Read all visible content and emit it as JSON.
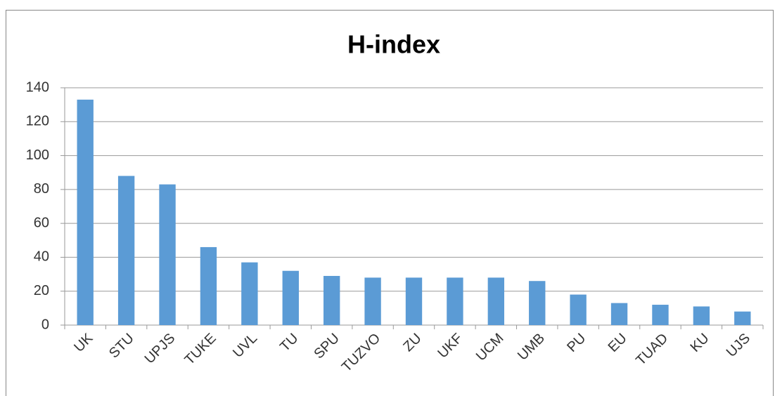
{
  "chart_data": {
    "type": "bar",
    "title": "H-index",
    "categories": [
      "UK",
      "STU",
      "UPJS",
      "TUKE",
      "UVL",
      "TU",
      "SPU",
      "TUZVO",
      "ZU",
      "UKF",
      "UCM",
      "UMB",
      "PU",
      "EU",
      "TUAD",
      "KU",
      "UJS"
    ],
    "values": [
      133,
      88,
      83,
      46,
      37,
      32,
      29,
      28,
      28,
      28,
      28,
      26,
      18,
      13,
      12,
      11,
      8
    ],
    "color": "#5b9bd5",
    "ylim": [
      0,
      140
    ],
    "yticks": [
      0,
      20,
      40,
      60,
      80,
      100,
      120,
      140
    ],
    "grid": true
  }
}
